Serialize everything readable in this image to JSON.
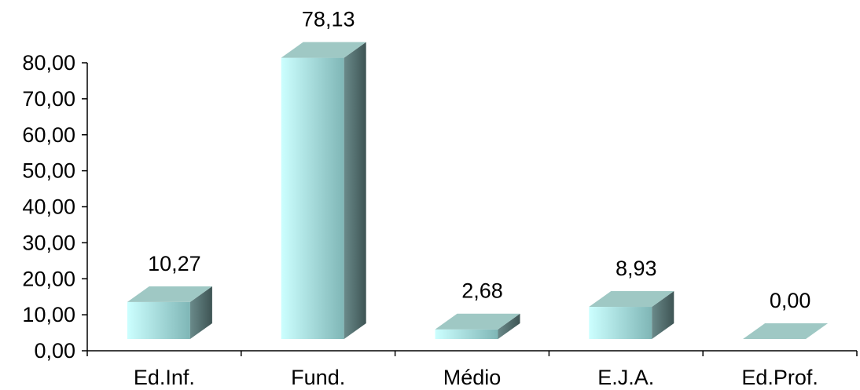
{
  "chart_data": {
    "type": "bar",
    "categories": [
      "Ed.Inf.",
      "Fund.",
      "Médio",
      "E.J.A.",
      "Ed.Prof."
    ],
    "values": [
      10.27,
      78.13,
      2.68,
      8.93,
      0.0
    ],
    "value_labels": [
      "10,27",
      "78,13",
      "2,68",
      "8,93",
      "0,00"
    ],
    "y_ticks": [
      "0,00",
      "10,00",
      "20,00",
      "30,00",
      "40,00",
      "50,00",
      "60,00",
      "70,00",
      "80,00"
    ],
    "ylim": [
      0,
      80
    ],
    "title": "",
    "xlabel": "",
    "ylabel": "",
    "grid": false,
    "style": "3d-bar",
    "colors": {
      "front_light": "#ccffff",
      "front_dark": "#7fb6b6",
      "side": "#4e6666",
      "top": "#9fc8c4",
      "axis": "#000000"
    }
  }
}
